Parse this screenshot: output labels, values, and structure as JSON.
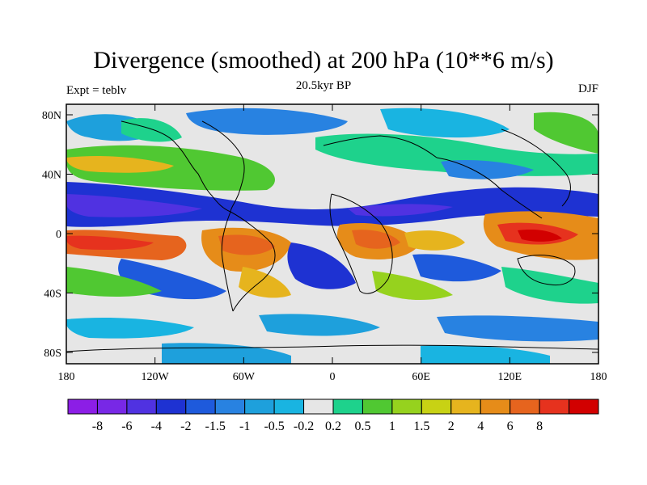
{
  "header": {
    "title": "Divergence (smoothed) at 200 hPa (10**6 m/s)",
    "subtitle": "20.5kyr BP",
    "left_label": "Expt = teblv",
    "right_label": "DJF"
  },
  "axes": {
    "y_ticks": [
      "80N",
      "40N",
      "0",
      "40S",
      "80S"
    ],
    "x_ticks": [
      "180",
      "120W",
      "60W",
      "0",
      "60E",
      "120E",
      "180"
    ]
  },
  "colorbar": {
    "colors": [
      "#8c1ee6",
      "#7828e6",
      "#5032e1",
      "#1e32d2",
      "#1e5adc",
      "#2882e1",
      "#1ea0dc",
      "#19b4e1",
      "#e6e6e6",
      "#1ed28c",
      "#50c832",
      "#96d21e",
      "#c8d214",
      "#e6b41e",
      "#e68c19",
      "#e6641e",
      "#e6321e",
      "#d20000"
    ],
    "labels": [
      "-8",
      "-6",
      "-4",
      "-2",
      "-1.5",
      "-1",
      "-0.5",
      "-0.2",
      "0.2",
      "0.5",
      "1",
      "1.5",
      "2",
      "4",
      "6",
      "8"
    ]
  }
}
